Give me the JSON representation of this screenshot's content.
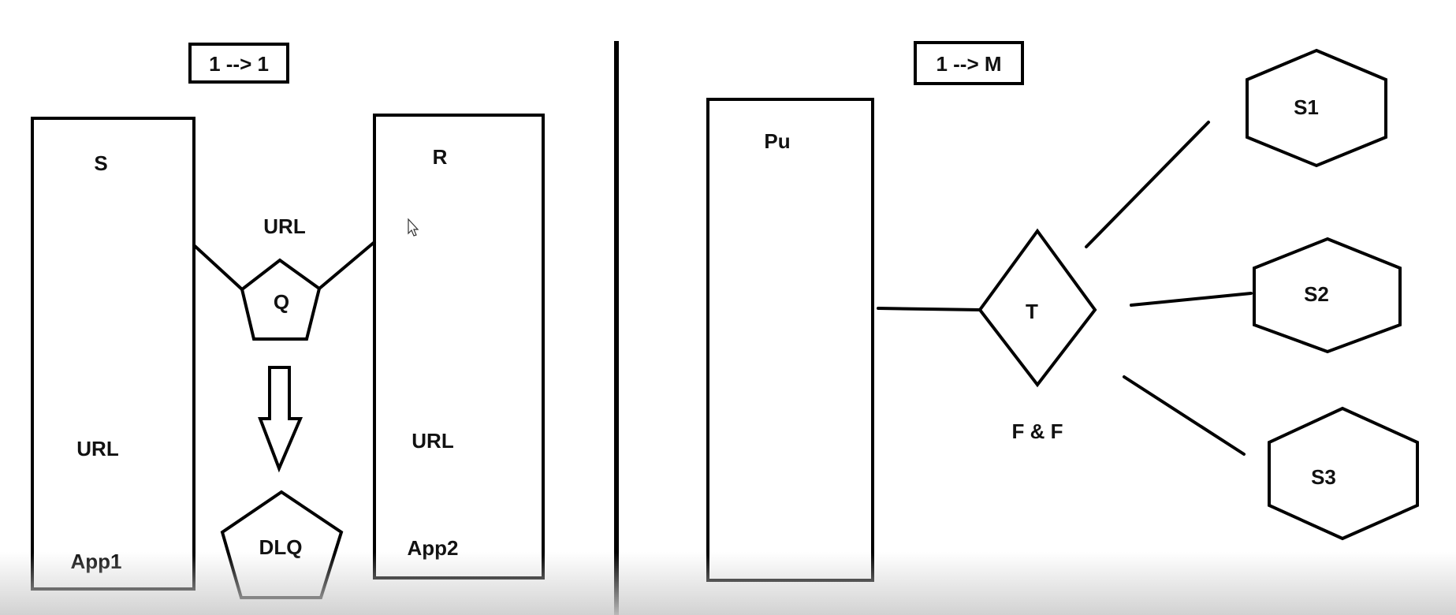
{
  "left": {
    "title": "1 --> 1",
    "app1": {
      "role": "S",
      "url": "URL",
      "name": "App1"
    },
    "link_label": "URL",
    "queue": "Q",
    "dead_letter_queue": "DLQ",
    "app2": {
      "role": "R",
      "url": "URL",
      "name": "App2"
    }
  },
  "right": {
    "title": "1 --> M",
    "publisher": "Pu",
    "topic": "T",
    "topic_note": "F & F",
    "subscribers": [
      "S1",
      "S2",
      "S3"
    ]
  }
}
